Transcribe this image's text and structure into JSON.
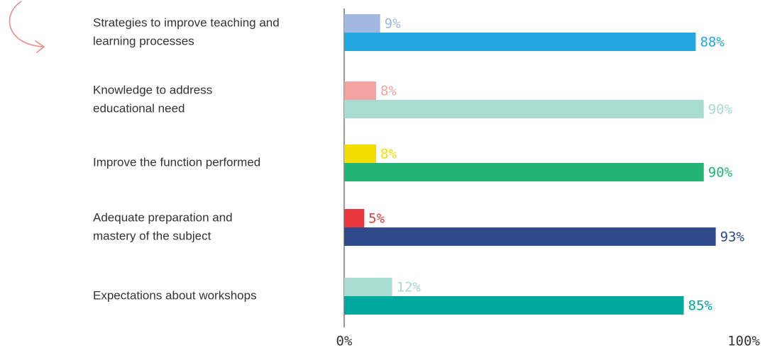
{
  "chart_data": {
    "type": "barh",
    "categories": [
      [
        "Strategies to improve teaching and",
        "learning processes"
      ],
      [
        "Knowledge to address",
        "educational need"
      ],
      [
        "Improve the function performed"
      ],
      [
        "Adequate preparation and",
        "mastery of the subject"
      ],
      [
        "Expectations about workshops"
      ]
    ],
    "series": [
      {
        "values": [
          9,
          8,
          8,
          5,
          12
        ],
        "value_labels": [
          "9%",
          "8%",
          "8%",
          "5%",
          "12%"
        ],
        "colors": [
          "#a3b8e0",
          "#f4a3a3",
          "#f5dc00",
          "#e8383d",
          "#a8dcd1"
        ]
      },
      {
        "values": [
          88,
          90,
          90,
          93,
          85
        ],
        "value_labels": [
          "88%",
          "90%",
          "90%",
          "93%",
          "85%"
        ],
        "colors": [
          "#22a7e0",
          "#a8dcd1",
          "#22b573",
          "#2e4a8b",
          "#00a99d"
        ]
      }
    ],
    "xlim": [
      0,
      100
    ],
    "xticks": [
      {
        "value": 0,
        "label": "0%"
      },
      {
        "value": 100,
        "label": "100%"
      }
    ]
  }
}
